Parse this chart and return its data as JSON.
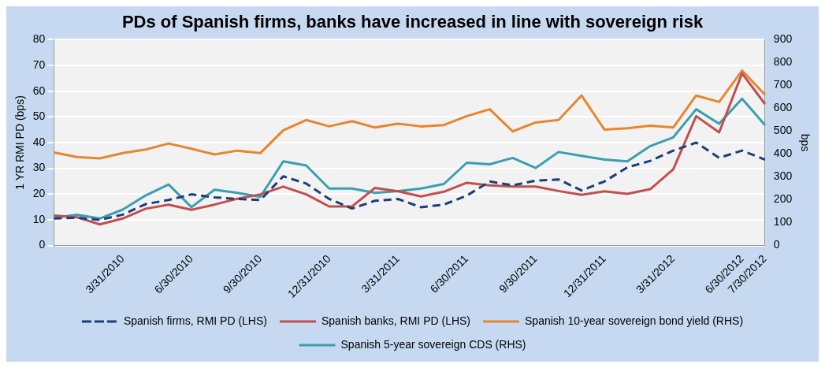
{
  "chart_data": {
    "type": "line",
    "title": "PDs of Spanish firms, banks have increased in line with sovereign risk",
    "ylabel": "1 YR RMI PD (bps)",
    "y2label": "bps",
    "categories": [
      null,
      null,
      null,
      "3/31/2010",
      null,
      null,
      "6/30/2010",
      null,
      null,
      "9/30/2010",
      null,
      null,
      "12/31/2010",
      null,
      null,
      "3/31/2011",
      null,
      null,
      "6/30/2011",
      null,
      null,
      "9/30/2011",
      null,
      null,
      "12/31/2011",
      null,
      null,
      "3/31/2012",
      null,
      null,
      "6/30/2012",
      "7/30/2012"
    ],
    "series": [
      {
        "name": "Spanish firms, RMI PD (LHS)",
        "color": "#1f3d7a",
        "line_style": "dashed",
        "values": [
          10.5,
          10.8,
          10,
          12,
          16.1,
          17.7,
          19.9,
          18.7,
          18.1,
          17.7,
          26.9,
          24.1,
          18.1,
          14.4,
          17.4,
          18.1,
          14.9,
          15.9,
          19.4,
          24.9,
          23.4,
          25.2,
          25.7,
          21.4,
          24.9,
          30.4,
          32.9,
          36.9,
          40,
          34.1,
          36.9,
          33.4
        ]
      },
      {
        "name": "Spanish banks, RMI PD (LHS)",
        "color": "#c0504d",
        "line_style": "solid",
        "values": [
          11.7,
          11,
          8.2,
          10.5,
          14.3,
          15.9,
          13.9,
          15.9,
          18.2,
          19.9,
          22.9,
          19.9,
          15.2,
          15.2,
          22.4,
          21.1,
          19.1,
          20.9,
          24.4,
          23.4,
          22.9,
          22.9,
          21.2,
          19.7,
          21.1,
          20.1,
          21.9,
          29.6,
          50.3,
          44,
          66.9,
          55
        ]
      },
      {
        "name": "Spanish 10-year sovereign bond yield (RHS)",
        "color": "#e8852f",
        "axis": "y2",
        "line_style": "solid",
        "values": [
          407,
          387,
          381,
          404,
          420,
          446,
          423,
          398,
          415,
          404,
          504,
          549,
          521,
          544,
          516,
          533,
          521,
          527,
          566,
          596,
          499,
          538,
          549,
          656,
          507,
          513,
          524,
          516,
          656,
          628,
          765,
          659
        ]
      },
      {
        "name": "Spanish 5-year sovereign CDS (RHS)",
        "color": "#3a9fb0",
        "axis": "y2",
        "line_style": "solid",
        "values": [
          121,
          135,
          118,
          157,
          219,
          267,
          168,
          244,
          230,
          213,
          368,
          350,
          249,
          249,
          230,
          238,
          249,
          269,
          362,
          355,
          383,
          339,
          409,
          392,
          376,
          368,
          435,
          473,
          596,
          533,
          642,
          527
        ]
      }
    ],
    "ylim": [
      0,
      80
    ],
    "yticks": [
      0,
      10,
      20,
      30,
      40,
      50,
      60,
      70,
      80
    ],
    "y2lim": [
      0,
      900
    ],
    "y2ticks": [
      0,
      100,
      200,
      300,
      400,
      500,
      600,
      700,
      800,
      900
    ],
    "grid": "y",
    "legend": "bottom",
    "marker": "none"
  }
}
